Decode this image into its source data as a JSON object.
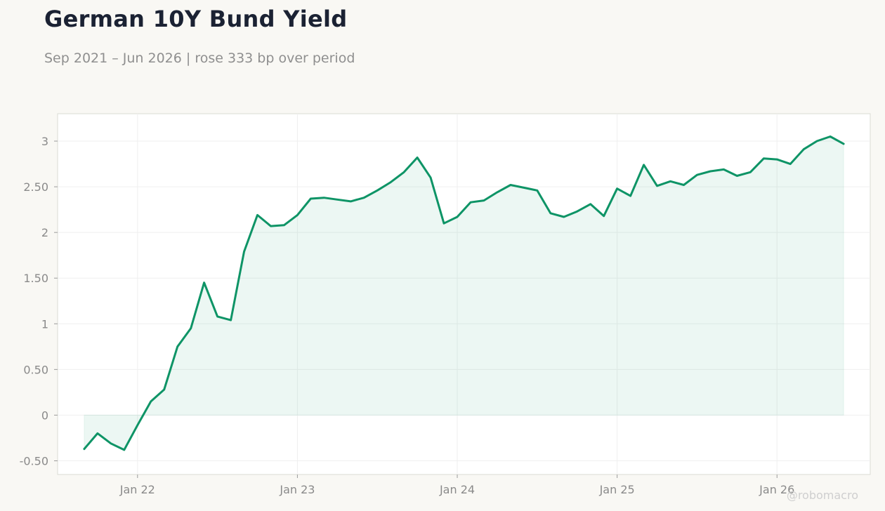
{
  "header": {
    "title": "German 10Y Bund Yield",
    "subtitle": "Sep 2021 – Jun 2026 | rose 333 bp over period"
  },
  "watermark": "@robomacro",
  "colors": {
    "line": "#0e9466",
    "fill": "#0e9466",
    "plot_bg": "#ffffff",
    "grid": "#efefef",
    "frame": "#dadbd3"
  },
  "chart_data": {
    "type": "area",
    "title": "German 10Y Bund Yield",
    "subtitle": "Sep 2021 – Jun 2026 | rose 333 bp over period",
    "xlabel": "",
    "ylabel": "",
    "x": [
      "2021-09",
      "2021-10",
      "2021-11",
      "2021-12",
      "2022-01",
      "2022-02",
      "2022-03",
      "2022-04",
      "2022-05",
      "2022-06",
      "2022-07",
      "2022-08",
      "2022-09",
      "2022-10",
      "2022-11",
      "2022-12",
      "2023-01",
      "2023-02",
      "2023-03",
      "2023-04",
      "2023-05",
      "2023-06",
      "2023-07",
      "2023-08",
      "2023-09",
      "2023-10",
      "2023-11",
      "2023-12",
      "2024-01",
      "2024-02",
      "2024-03",
      "2024-04",
      "2024-05",
      "2024-06",
      "2024-07",
      "2024-08",
      "2024-09",
      "2024-10",
      "2024-11",
      "2024-12",
      "2025-01",
      "2025-02",
      "2025-03",
      "2025-04",
      "2025-05",
      "2025-06",
      "2025-07",
      "2025-08",
      "2025-09",
      "2025-10",
      "2025-11",
      "2025-12",
      "2026-01",
      "2026-02",
      "2026-03",
      "2026-04",
      "2026-05",
      "2026-06"
    ],
    "series": [
      {
        "values": [
          -0.37,
          -0.2,
          -0.31,
          -0.38,
          -0.11,
          0.15,
          0.28,
          0.75,
          0.95,
          1.45,
          1.08,
          1.04,
          1.79,
          2.19,
          2.07,
          2.08,
          2.19,
          2.37,
          2.38,
          2.36,
          2.34,
          2.38,
          2.46,
          2.55,
          2.66,
          2.82,
          2.6,
          2.1,
          2.17,
          2.33,
          2.35,
          2.44,
          2.52,
          2.49,
          2.46,
          2.21,
          2.17,
          2.23,
          2.31,
          2.18,
          2.48,
          2.4,
          2.74,
          2.51,
          2.56,
          2.52,
          2.63,
          2.67,
          2.69,
          2.62,
          2.66,
          2.81,
          2.8,
          2.75,
          2.91,
          3.0,
          3.05,
          2.97
        ]
      }
    ],
    "x_ticks": [
      "Jan 22",
      "Jan 23",
      "Jan 24",
      "Jan 25",
      "Jan 26"
    ],
    "x_tick_dates": [
      "2022-01",
      "2023-01",
      "2024-01",
      "2025-01",
      "2026-01"
    ],
    "y_ticks": [
      "-0.50",
      "0",
      "0.50",
      "1",
      "1.50",
      "2",
      "2.50",
      "3"
    ],
    "y_tick_values": [
      -0.5,
      0,
      0.5,
      1,
      1.5,
      2,
      2.5,
      3
    ],
    "xlim": [
      "2021-07",
      "2026-08"
    ],
    "ylim": [
      -0.65,
      3.3
    ],
    "fill_baseline": 0,
    "grid": true,
    "legend": "none"
  }
}
